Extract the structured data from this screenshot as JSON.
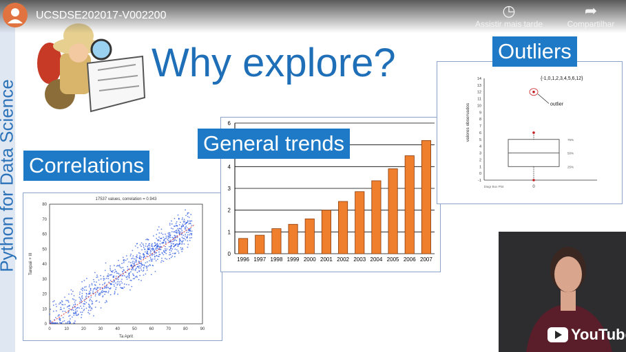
{
  "player": {
    "video_title": "UCSDSE202017-V002200",
    "watch_later_label": "Assistir mais tarde",
    "share_label": "Compartilhar",
    "watch_later_icon": "clock-icon",
    "share_icon": "share-arrow-icon",
    "logo_text": "YouTube"
  },
  "slide": {
    "sidebar_text": "Python for Data Science",
    "title": "Why explore?",
    "labels": {
      "correlations": "Correlations",
      "trends": "General trends",
      "outliers": "Outliers"
    },
    "accent_color": "#1e7ac6"
  },
  "chart_data": [
    {
      "type": "bar",
      "categories": [
        "1996",
        "1997",
        "1998",
        "1999",
        "2000",
        "2001",
        "2002",
        "2003",
        "2004",
        "2005",
        "2006",
        "2007"
      ],
      "values": [
        0.7,
        0.85,
        1.15,
        1.35,
        1.6,
        2.0,
        2.4,
        2.85,
        3.35,
        3.9,
        4.5,
        5.2
      ],
      "ylim": [
        0,
        6
      ],
      "yticks": [
        0,
        1,
        2,
        3,
        4,
        5,
        6
      ],
      "color": "#f07f2d",
      "grid": true
    },
    {
      "type": "scatter",
      "title": "17537 values, correlation = 0.943",
      "xlabel": "Ta Aprit",
      "ylabel": "Tarepaii + III",
      "xlim": [
        0,
        90
      ],
      "ylim": [
        0,
        80
      ],
      "xticks": [
        0,
        10,
        20,
        30,
        40,
        50,
        60,
        70,
        80,
        90
      ],
      "yticks": [
        0,
        10,
        20,
        30,
        40,
        50,
        60,
        70,
        80
      ],
      "color": "#1f4fe0",
      "trend_color": "#e23b3b"
    },
    {
      "type": "box",
      "annotation": "{-1,0,1,2,3,4,5,6,12}",
      "outlier_label": "outlier",
      "ylabel": "valores observados",
      "xlabel": "Diagr Box Plot",
      "xtick": "0",
      "ylim": [
        -1,
        14
      ],
      "yticks": [
        -1,
        0,
        1,
        2,
        3,
        4,
        5,
        6,
        7,
        8,
        9,
        10,
        11,
        12,
        13,
        14
      ],
      "q1": 1,
      "median": 3,
      "q3": 5,
      "whisker_low": -1,
      "whisker_high": 6,
      "outlier": 12,
      "quartile_labels": [
        "75%",
        "50%",
        "25%"
      ]
    }
  ]
}
